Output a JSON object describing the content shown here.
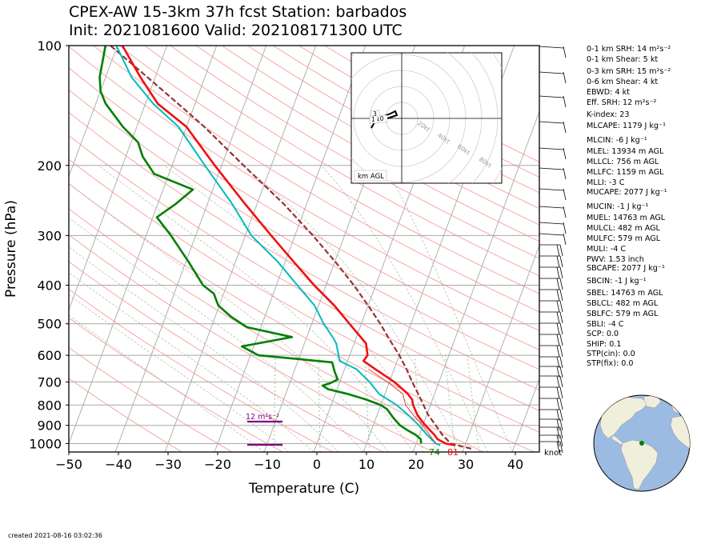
{
  "title": {
    "line1": "CPEX-AW 15-3km  37h fcst  Station: barbados",
    "line2": "Init: 2021081600  Valid: 202108171300 UTC"
  },
  "chart_data": {
    "type": "skew-t",
    "xlabel": "Temperature (C)",
    "ylabel": "Pressure (hPa)",
    "xlim_at_1000hPa": [
      -50,
      45
    ],
    "ylim": [
      1050,
      100
    ],
    "x_ticks": [
      -50,
      -40,
      -30,
      -20,
      -10,
      0,
      10,
      20,
      30,
      40
    ],
    "y_ticks": [
      100,
      200,
      300,
      400,
      500,
      600,
      700,
      800,
      900,
      1000
    ],
    "y_scale": "log",
    "grid": true,
    "temperature": [
      {
        "p": 1010,
        "t": 28.0
      },
      {
        "p": 1000,
        "t": 26.0
      },
      {
        "p": 975,
        "t": 24.0
      },
      {
        "p": 950,
        "t": 23.0
      },
      {
        "p": 900,
        "t": 20.5
      },
      {
        "p": 850,
        "t": 18.2
      },
      {
        "p": 800,
        "t": 16.5
      },
      {
        "p": 775,
        "t": 15.9
      },
      {
        "p": 750,
        "t": 14.6
      },
      {
        "p": 700,
        "t": 11.0
      },
      {
        "p": 650,
        "t": 6.2
      },
      {
        "p": 620,
        "t": 3.2
      },
      {
        "p": 600,
        "t": 3.6
      },
      {
        "p": 560,
        "t": 2.4
      },
      {
        "p": 500,
        "t": -2.4
      },
      {
        "p": 450,
        "t": -6.8
      },
      {
        "p": 400,
        "t": -12.4
      },
      {
        "p": 350,
        "t": -18.2
      },
      {
        "p": 300,
        "t": -24.8
      },
      {
        "p": 250,
        "t": -32.4
      },
      {
        "p": 200,
        "t": -41.4
      },
      {
        "p": 160,
        "t": -50.0
      },
      {
        "p": 140,
        "t": -57.5
      },
      {
        "p": 120,
        "t": -63.0
      },
      {
        "p": 100,
        "t": -69.0
      }
    ],
    "dewpoint": [
      {
        "p": 1010,
        "t": 25.0
      },
      {
        "p": 1000,
        "t": 24.0
      },
      {
        "p": 975,
        "t": 22.8
      },
      {
        "p": 950,
        "t": 21.5
      },
      {
        "p": 900,
        "t": 19.2
      },
      {
        "p": 850,
        "t": 16.4
      },
      {
        "p": 800,
        "t": 13.2
      },
      {
        "p": 750,
        "t": 8.8
      },
      {
        "p": 700,
        "t": 6.0
      },
      {
        "p": 650,
        "t": 2.4
      },
      {
        "p": 620,
        "t": -1.6
      },
      {
        "p": 560,
        "t": -3.6
      },
      {
        "p": 540,
        "t": -4.8
      },
      {
        "p": 500,
        "t": -7.6
      },
      {
        "p": 450,
        "t": -10.8
      },
      {
        "p": 400,
        "t": -15.8
      },
      {
        "p": 350,
        "t": -21.4
      },
      {
        "p": 300,
        "t": -28.8
      },
      {
        "p": 250,
        "t": -35.0
      },
      {
        "p": 200,
        "t": -43.4
      },
      {
        "p": 160,
        "t": -51.6
      },
      {
        "p": 140,
        "t": -58.4
      },
      {
        "p": 120,
        "t": -64.8
      },
      {
        "p": 100,
        "t": -70.2
      }
    ],
    "parcel": [
      {
        "p": 1030,
        "t": 31.5
      },
      {
        "p": 1000,
        "t": 27.0
      },
      {
        "p": 950,
        "t": 24.6
      },
      {
        "p": 900,
        "t": 22.6
      },
      {
        "p": 850,
        "t": 20.4
      },
      {
        "p": 800,
        "t": 18.6
      },
      {
        "p": 750,
        "t": 16.7
      },
      {
        "p": 700,
        "t": 14.6
      },
      {
        "p": 650,
        "t": 12.5
      },
      {
        "p": 600,
        "t": 10.0
      },
      {
        "p": 550,
        "t": 7.0
      },
      {
        "p": 500,
        "t": 3.8
      },
      {
        "p": 450,
        "t": 0.0
      },
      {
        "p": 400,
        "t": -4.4
      },
      {
        "p": 350,
        "t": -9.8
      },
      {
        "p": 300,
        "t": -16.4
      },
      {
        "p": 250,
        "t": -24.6
      },
      {
        "p": 200,
        "t": -35.6
      },
      {
        "p": 160,
        "t": -46.4
      },
      {
        "p": 140,
        "t": -53.4
      },
      {
        "p": 120,
        "t": -61.6
      },
      {
        "p": 100,
        "t": -71.4
      }
    ],
    "wetbulb": [
      {
        "p": 1000,
        "t": 24.0
      },
      {
        "p": 975,
        "t": 23.0
      },
      {
        "p": 950,
        "t": 22.0
      },
      {
        "p": 900,
        "t": 20.0
      },
      {
        "p": 850,
        "t": 17.4
      },
      {
        "p": 800,
        "t": 15.0
      },
      {
        "p": 775,
        "t": 14.3
      },
      {
        "p": 750,
        "t": 13.6
      },
      {
        "p": 700,
        "t": 9.6
      },
      {
        "p": 650,
        "t": 4.8
      }
    ],
    "trace_green": [
      {
        "p": 1000,
        "t": 21.0
      },
      {
        "p": 975,
        "t": 20.6
      },
      {
        "p": 950,
        "t": 19.2
      },
      {
        "p": 925,
        "t": 17.2
      },
      {
        "p": 900,
        "t": 15.4
      },
      {
        "p": 860,
        "t": 13.4
      },
      {
        "p": 820,
        "t": 11.6
      },
      {
        "p": 800,
        "t": 10.0
      },
      {
        "p": 775,
        "t": 6.6
      },
      {
        "p": 750,
        "t": 2.4
      },
      {
        "p": 730,
        "t": -1.8
      },
      {
        "p": 715,
        "t": -3.2
      },
      {
        "p": 705,
        "t": -1.8
      },
      {
        "p": 690,
        "t": -0.6
      },
      {
        "p": 660,
        "t": -1.8
      },
      {
        "p": 625,
        "t": -3.0
      },
      {
        "p": 600,
        "t": -18.4
      },
      {
        "p": 570,
        "t": -22.4
      },
      {
        "p": 540,
        "t": -13.0
      },
      {
        "p": 510,
        "t": -22.8
      },
      {
        "p": 480,
        "t": -26.8
      },
      {
        "p": 450,
        "t": -30.2
      },
      {
        "p": 420,
        "t": -32.0
      },
      {
        "p": 400,
        "t": -34.8
      },
      {
        "p": 350,
        "t": -39.4
      },
      {
        "p": 300,
        "t": -45.0
      },
      {
        "p": 270,
        "t": -49.2
      },
      {
        "p": 250,
        "t": -46.4
      },
      {
        "p": 230,
        "t": -44.0
      },
      {
        "p": 210,
        "t": -53.0
      },
      {
        "p": 190,
        "t": -56.6
      },
      {
        "p": 175,
        "t": -58.6
      },
      {
        "p": 160,
        "t": -62.8
      },
      {
        "p": 140,
        "t": -68.0
      },
      {
        "p": 130,
        "t": -70.0
      },
      {
        "p": 120,
        "t": -71.2
      },
      {
        "p": 100,
        "t": -72.4
      }
    ],
    "surface_labels": {
      "dewpoint": "74",
      "temperature": "81"
    },
    "srh_bar_label": "12 m²s⁻²",
    "wind_barb_unit": "knot",
    "inset": {
      "label": "km AGL",
      "ring_labels": [
        "20kt",
        "40kt",
        "60kt",
        "80kt"
      ],
      "height_labels": [
        "10",
        "3",
        "1"
      ]
    }
  },
  "stats": [
    {
      "label": "0-1 km SRH: 14 m²s⁻²"
    },
    {
      "label": "0-1 km Shear: 5 kt"
    },
    {
      "label": "0-3 km SRH: 15 m²s⁻²"
    },
    {
      "label": "0-6 km Shear: 4 kt"
    },
    {
      "label": "EBWD: 4 kt"
    },
    {
      "label": "Eff. SRH: 12 m²s⁻²"
    },
    {
      "label": "K-index: 23"
    },
    {
      "label": "MLCAPE: 1179 J kg⁻¹"
    },
    {
      "label": "MLCIN: -6 J kg⁻¹"
    },
    {
      "label": "MLEL: 13934 m AGL"
    },
    {
      "label": "MLLCL: 756 m AGL"
    },
    {
      "label": "MLLFC: 1159 m AGL"
    },
    {
      "label": "MLLI: -3 C"
    },
    {
      "label": "MUCAPE: 2077 J kg⁻¹"
    },
    {
      "label": "MUCIN: -1 J kg⁻¹"
    },
    {
      "label": "MUEL: 14763 m AGL"
    },
    {
      "label": "MULCL: 482 m AGL"
    },
    {
      "label": "MULFC: 579 m AGL"
    },
    {
      "label": "MULI: -4 C"
    },
    {
      "label": "PWV: 1.53 inch"
    },
    {
      "label": "SBCAPE: 2077 J kg⁻¹"
    },
    {
      "label": "SBCIN: -1 J kg⁻¹"
    },
    {
      "label": "SBEL: 14763 m AGL"
    },
    {
      "label": "SBLCL: 482 m AGL"
    },
    {
      "label": "SBLFC: 579 m AGL"
    },
    {
      "label": "SBLI: -4 C"
    },
    {
      "label": "SCP: 0.0"
    },
    {
      "label": "SHIP: 0.1"
    },
    {
      "label": "STP(cin): 0.0"
    },
    {
      "label": "STP(fix): 0.0"
    }
  ],
  "created": "created 2021-08-16 03:02:36",
  "colors": {
    "temperature": "#ee1111",
    "dewpoint": "#00bbbb",
    "trace_green": "#008000",
    "parcel": "#993333",
    "srh_bar": "#800080",
    "ocean": "#9cbbe2",
    "land": "#efefdb"
  }
}
